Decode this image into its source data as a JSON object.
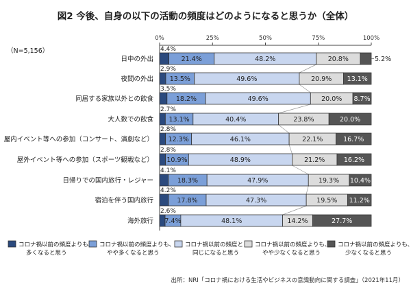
{
  "chart_data": {
    "type": "bar",
    "orientation": "horizontal-stacked-100",
    "title": "図2 今後、自身の以下の活動の頻度はどのようになると思うか（全体）",
    "sample_size_label": "（N=5,156）",
    "xlabel": "",
    "ylabel": "",
    "xlim": [
      0,
      100
    ],
    "x_ticks": [
      "0%",
      "25%",
      "50%",
      "75%",
      "100%"
    ],
    "categories": [
      "日中の外出",
      "夜間の外出",
      "同居する家族以外との飲食",
      "大人数での飲食",
      "屋内イベント等への参加（コンサート、演劇など）",
      "屋外イベント等への参加（スポーツ観戦など）",
      "日帰りでの国内旅行・レジャー",
      "宿泊を伴う国内旅行",
      "海外旅行"
    ],
    "series": [
      {
        "name": "コロナ禍以前の頻度よりも、多くなると思う",
        "color": "#2b4a7e",
        "values": [
          4.4,
          2.9,
          3.5,
          2.7,
          2.8,
          2.8,
          4.1,
          4.2,
          2.6
        ]
      },
      {
        "name": "コロナ禍以前の頻度よりも、やや多くなると思う",
        "color": "#7b9fd8",
        "values": [
          21.4,
          13.5,
          18.2,
          13.1,
          12.3,
          10.9,
          18.3,
          17.8,
          7.4
        ]
      },
      {
        "name": "コロナ禍以前の頻度と同じになると思う",
        "color": "#c8d6ef",
        "values": [
          48.2,
          49.6,
          49.6,
          40.4,
          46.1,
          48.9,
          47.9,
          47.3,
          48.1
        ]
      },
      {
        "name": "コロナ禍以前の頻度よりも、やや少なくなると思う",
        "color": "#dcdcdc",
        "values": [
          20.8,
          20.9,
          20.0,
          23.8,
          22.1,
          21.2,
          19.3,
          19.5,
          14.2
        ]
      },
      {
        "name": "コロナ禍以前の頻度よりも、少なくなると思う",
        "color": "#555555",
        "values": [
          5.2,
          13.1,
          8.7,
          20.0,
          16.7,
          16.2,
          10.4,
          11.2,
          27.7
        ]
      }
    ],
    "legend": {
      "position": "bottom",
      "items": [
        {
          "line1": "コロナ禍以前の頻度よりも、",
          "line2": "多くなると思う"
        },
        {
          "line1": "コロナ禍以前の頻度よりも、",
          "line2": "やや多くなると思う"
        },
        {
          "line1": "コロナ禍以前の頻度と",
          "line2": "同じになると思う"
        },
        {
          "line1": "コロナ禍以前の頻度よりも、",
          "line2": "やや少なくなると思う"
        },
        {
          "line1": "コロナ禍以前の頻度よりも、",
          "line2": "少なくなると思う"
        }
      ]
    },
    "source": "出所：NRI「コロナ禍における生活やビジネスの意識動向に関する調査」（2021年11月）",
    "grid": false
  }
}
